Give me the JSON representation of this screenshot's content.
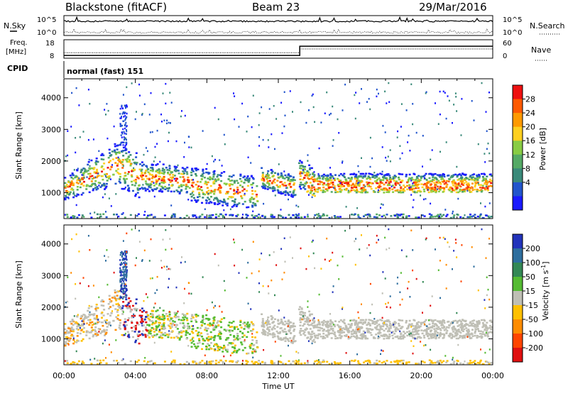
{
  "header": {
    "station": "Blackstone (fitACF)",
    "beam": "Beam 23",
    "date": "29/Mar/2016"
  },
  "noise_panel": {
    "left_label": "N.Sky",
    "right_label": "N.Search",
    "tick_top": "10^5",
    "tick_bottom": "10^0"
  },
  "freq_panel": {
    "left_label_1": "Freq.",
    "left_label_2": "[MHz]",
    "right_label": "Nave",
    "left_ticks": [
      "18",
      "8"
    ],
    "right_ticks": [
      "60",
      "0"
    ],
    "freq_MHz": [
      {
        "t": 0,
        "v": 9.5
      },
      {
        "t": 13.2,
        "v": 9.5
      },
      {
        "t": 13.2,
        "v": 14.5
      },
      {
        "t": 24,
        "v": 14.5
      }
    ],
    "nave": [
      {
        "t": 0,
        "v": 18
      },
      {
        "t": 13.2,
        "v": 18
      },
      {
        "t": 13.2,
        "v": 30
      },
      {
        "t": 24,
        "v": 30
      }
    ]
  },
  "cpid": {
    "label": "CPID",
    "text": "normal (fast) 151"
  },
  "colors": {
    "power_scale": [
      "#1a1aff",
      "#2255cc",
      "#3a8a7a",
      "#55aa66",
      "#88cc44",
      "#ffd020",
      "#ff9a00",
      "#ff5a00",
      "#ee1010"
    ],
    "velocity_scale": [
      "#2233bb",
      "#2e6e9e",
      "#338855",
      "#55bb33",
      "#bfbfb5",
      "#ffc000",
      "#ff8c00",
      "#ff4500",
      "#e01010"
    ]
  },
  "chart_data": [
    {
      "type": "heatmap",
      "title": "",
      "xlabel": "Time UT",
      "ylabel": "Slant Range [km]",
      "colorbar_label": "Power [dB]",
      "colorbar_ticks": [
        "28",
        "24",
        "20",
        "16",
        "12",
        "8",
        "4"
      ],
      "xlim": [
        0,
        24
      ],
      "ylim": [
        180,
        4600
      ],
      "yticks": [
        "4000",
        "3000",
        "2000",
        "1000"
      ],
      "bands": [
        {
          "t0": 0.0,
          "t1": 3.0,
          "r0": 1050,
          "r1": 2350,
          "level": "mixed"
        },
        {
          "t0": 3.0,
          "t1": 7.0,
          "r0": 1200,
          "r1": 2300,
          "level": "mixed"
        },
        {
          "t0": 7.0,
          "t1": 10.8,
          "r0": 700,
          "r1": 1700,
          "level": "mixed"
        },
        {
          "t0": 11.0,
          "t1": 12.9,
          "r0": 1100,
          "r1": 1900,
          "level": "mixed"
        },
        {
          "t0": 13.0,
          "t1": 23.9,
          "r0": 1150,
          "r1": 2100,
          "level": "mixed"
        }
      ]
    },
    {
      "type": "heatmap",
      "title": "",
      "xlabel": "Time UT",
      "ylabel": "Slant Range [km]",
      "colorbar_label": "Velocity [m s^-1]",
      "colorbar_ticks": [
        "200",
        "100",
        "50",
        "15",
        "-15",
        "-50",
        "-100",
        "-200"
      ],
      "xlim": [
        0,
        24
      ],
      "ylim": [
        180,
        4600
      ],
      "yticks": [
        "4000",
        "3000",
        "2000",
        "1000"
      ],
      "xticks": [
        "00:00",
        "04:00",
        "08:00",
        "12:00",
        "16:00",
        "20:00",
        "00:00"
      ]
    }
  ]
}
